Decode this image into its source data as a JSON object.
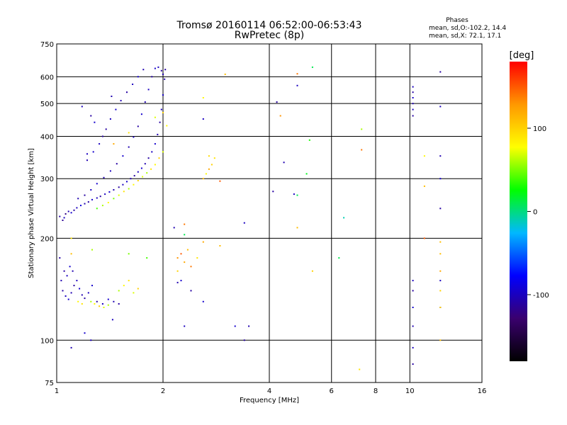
{
  "chart_data": {
    "type": "scatter",
    "title": "Tromsø 20160114 06:52:00-06:53:43",
    "subtitle": "RwPretec (8p)",
    "xlabel": "Frequency [MHz]",
    "ylabel": "Stationary phase Virtual Height [km]",
    "x_scale": "log",
    "y_scale": "log",
    "xlim": [
      1,
      16
    ],
    "ylim": [
      75,
      750
    ],
    "x_ticks": [
      1,
      2,
      4,
      6,
      8,
      10,
      16
    ],
    "y_ticks": [
      75,
      100,
      200,
      300,
      400,
      500,
      600,
      750
    ],
    "grid": true,
    "stats": {
      "heading": "Phases",
      "line_o": "mean, sd,O:-102.2, 14.4",
      "line_x": "mean, sd,X:  72.1, 17.1"
    },
    "colorbar": {
      "label": "[deg]",
      "range": [
        -180,
        180
      ],
      "ticks": [
        100,
        0,
        -100
      ],
      "colors": [
        "#000000",
        "#3a006e",
        "#0000ff",
        "#00b8ff",
        "#00ff00",
        "#ffff00",
        "#ff9800",
        "#ff0000"
      ]
    },
    "series": [
      {
        "name": "O",
        "points": [
          [
            1.02,
            232,
            -110
          ],
          [
            1.04,
            226,
            -115
          ],
          [
            1.05,
            230,
            -100
          ],
          [
            1.06,
            236,
            -120
          ],
          [
            1.08,
            240,
            -105
          ],
          [
            1.1,
            238,
            -95
          ],
          [
            1.12,
            242,
            -110
          ],
          [
            1.14,
            246,
            -100
          ],
          [
            1.17,
            250,
            -90
          ],
          [
            1.2,
            253,
            -105
          ],
          [
            1.23,
            256,
            -110
          ],
          [
            1.26,
            260,
            -95
          ],
          [
            1.3,
            263,
            -100
          ],
          [
            1.33,
            266,
            -110
          ],
          [
            1.37,
            270,
            -100
          ],
          [
            1.41,
            274,
            -95
          ],
          [
            1.45,
            278,
            -105
          ],
          [
            1.5,
            283,
            -110
          ],
          [
            1.54,
            288,
            -100
          ],
          [
            1.58,
            294,
            -95
          ],
          [
            1.62,
            300,
            -105
          ],
          [
            1.66,
            306,
            -110
          ],
          [
            1.7,
            314,
            -100
          ],
          [
            1.74,
            322,
            -95
          ],
          [
            1.78,
            332,
            -105
          ],
          [
            1.82,
            345,
            -110
          ],
          [
            1.86,
            360,
            -100
          ],
          [
            1.9,
            380,
            -95
          ],
          [
            1.93,
            405,
            -105
          ],
          [
            1.96,
            440,
            -110
          ],
          [
            1.98,
            480,
            -100
          ],
          [
            2.0,
            530,
            -95
          ],
          [
            2.02,
            590,
            -105
          ],
          [
            2.03,
            630,
            -110
          ],
          [
            1.15,
            262,
            -105
          ],
          [
            1.2,
            268,
            -110
          ],
          [
            1.25,
            278,
            -100
          ],
          [
            1.3,
            290,
            -95
          ],
          [
            1.36,
            302,
            -105
          ],
          [
            1.42,
            316,
            -100
          ],
          [
            1.48,
            332,
            -110
          ],
          [
            1.54,
            350,
            -95
          ],
          [
            1.6,
            372,
            -105
          ],
          [
            1.65,
            398,
            -100
          ],
          [
            1.7,
            428,
            -110
          ],
          [
            1.74,
            465,
            -95
          ],
          [
            1.78,
            505,
            -105
          ],
          [
            1.82,
            550,
            -100
          ],
          [
            1.86,
            600,
            -110
          ],
          [
            1.9,
            635,
            -95
          ],
          [
            1.94,
            640,
            -100
          ],
          [
            1.98,
            625,
            -110
          ],
          [
            2.0,
            610,
            -105
          ],
          [
            1.38,
            420,
            -110
          ],
          [
            1.42,
            450,
            -100
          ],
          [
            1.47,
            480,
            -95
          ],
          [
            1.52,
            510,
            -105
          ],
          [
            1.58,
            540,
            -110
          ],
          [
            1.64,
            570,
            -100
          ],
          [
            1.7,
            600,
            -95
          ],
          [
            1.76,
            630,
            -105
          ],
          [
            1.32,
            380,
            -100
          ],
          [
            1.35,
            400,
            -110
          ],
          [
            1.27,
            360,
            -95
          ],
          [
            1.22,
            340,
            -105
          ],
          [
            1.04,
            140,
            -110
          ],
          [
            1.06,
            135,
            -100
          ],
          [
            1.08,
            132,
            -95
          ],
          [
            1.1,
            138,
            -105
          ],
          [
            1.12,
            145,
            -110
          ],
          [
            1.14,
            150,
            -100
          ],
          [
            1.16,
            142,
            -95
          ],
          [
            1.18,
            136,
            -105
          ],
          [
            1.2,
            133,
            -110
          ],
          [
            1.23,
            138,
            -100
          ],
          [
            1.26,
            145,
            -95
          ],
          [
            1.03,
            150,
            -105
          ],
          [
            1.05,
            160,
            -110
          ],
          [
            1.07,
            155,
            -100
          ],
          [
            1.09,
            165,
            -95
          ],
          [
            1.11,
            160,
            -105
          ],
          [
            1.3,
            130,
            -110
          ],
          [
            1.35,
            128,
            -100
          ],
          [
            1.4,
            132,
            -95
          ],
          [
            1.45,
            130,
            -105
          ],
          [
            1.5,
            128,
            -110
          ],
          [
            1.44,
            115,
            -100
          ],
          [
            1.2,
            105,
            -95
          ],
          [
            1.1,
            95,
            -105
          ],
          [
            1.02,
            175,
            -110
          ],
          [
            1.18,
            490,
            -100
          ],
          [
            1.25,
            460,
            -110
          ],
          [
            1.28,
            440,
            -95
          ],
          [
            1.43,
            525,
            -105
          ],
          [
            1.22,
            355,
            -100
          ],
          [
            10.2,
            560,
            -100
          ],
          [
            10.2,
            540,
            -110
          ],
          [
            10.2,
            520,
            -95
          ],
          [
            10.2,
            500,
            -105
          ],
          [
            10.2,
            480,
            -100
          ],
          [
            10.2,
            460,
            -110
          ],
          [
            10.2,
            150,
            -100
          ],
          [
            10.2,
            140,
            -110
          ],
          [
            10.2,
            125,
            -95
          ],
          [
            10.2,
            110,
            -105
          ],
          [
            10.2,
            95,
            -100
          ],
          [
            10.2,
            85,
            -110
          ],
          [
            12.2,
            620,
            -110
          ],
          [
            12.2,
            490,
            -100
          ],
          [
            12.2,
            350,
            -105
          ],
          [
            12.2,
            300,
            -95
          ],
          [
            12.2,
            245,
            -110
          ],
          [
            12.2,
            150,
            -100
          ],
          [
            12.2,
            125,
            -105
          ],
          [
            4.8,
            565,
            -100
          ],
          [
            4.2,
            505,
            -110
          ],
          [
            4.4,
            335,
            -105
          ],
          [
            3.4,
            222,
            -100
          ],
          [
            3.4,
            100,
            -110
          ],
          [
            3.2,
            110,
            -95
          ],
          [
            3.5,
            110,
            -105
          ],
          [
            2.3,
            110,
            -100
          ],
          [
            2.25,
            150,
            -95
          ],
          [
            2.2,
            148,
            -105
          ],
          [
            2.4,
            140,
            -110
          ],
          [
            2.6,
            450,
            -100
          ],
          [
            2.6,
            130,
            -95
          ],
          [
            2.15,
            215,
            -105
          ],
          [
            4.7,
            270,
            -100
          ],
          [
            4.1,
            275,
            -110
          ],
          [
            1.25,
            100,
            -100
          ]
        ]
      },
      {
        "name": "X",
        "points": [
          [
            1.3,
            245,
            40
          ],
          [
            1.35,
            250,
            60
          ],
          [
            1.4,
            255,
            80
          ],
          [
            1.45,
            262,
            50
          ],
          [
            1.5,
            268,
            70
          ],
          [
            1.55,
            275,
            90
          ],
          [
            1.6,
            280,
            60
          ],
          [
            1.65,
            288,
            80
          ],
          [
            1.7,
            296,
            100
          ],
          [
            1.75,
            304,
            70
          ],
          [
            1.8,
            312,
            60
          ],
          [
            1.85,
            320,
            90
          ],
          [
            1.9,
            330,
            80
          ],
          [
            1.95,
            345,
            100
          ],
          [
            2.0,
            360,
            70
          ],
          [
            1.25,
            130,
            60
          ],
          [
            1.28,
            128,
            80
          ],
          [
            1.32,
            126,
            100
          ],
          [
            1.36,
            125,
            70
          ],
          [
            1.4,
            127,
            60
          ],
          [
            1.15,
            130,
            80
          ],
          [
            1.18,
            128,
            90
          ],
          [
            1.5,
            140,
            60
          ],
          [
            1.55,
            145,
            80
          ],
          [
            1.6,
            150,
            90
          ],
          [
            1.65,
            138,
            70
          ],
          [
            1.7,
            142,
            100
          ],
          [
            2.2,
            175,
            130
          ],
          [
            2.25,
            180,
            150
          ],
          [
            2.3,
            170,
            120
          ],
          [
            2.35,
            185,
            110
          ],
          [
            2.4,
            165,
            140
          ],
          [
            2.2,
            160,
            100
          ],
          [
            2.8,
            345,
            90
          ],
          [
            2.75,
            330,
            100
          ],
          [
            2.7,
            320,
            120
          ],
          [
            2.65,
            310,
            80
          ],
          [
            2.6,
            300,
            110
          ],
          [
            3.0,
            610,
            110
          ],
          [
            2.9,
            295,
            150
          ],
          [
            2.7,
            350,
            95
          ],
          [
            2.3,
            220,
            140
          ],
          [
            2.6,
            195,
            120
          ],
          [
            2.9,
            190,
            110
          ],
          [
            2.5,
            175,
            90
          ],
          [
            4.8,
            612,
            140
          ],
          [
            4.3,
            460,
            130
          ],
          [
            5.2,
            390,
            30
          ],
          [
            5.1,
            310,
            20
          ],
          [
            4.8,
            268,
            10
          ],
          [
            4.8,
            215,
            110
          ],
          [
            5.3,
            640,
            10
          ],
          [
            5.3,
            160,
            100
          ],
          [
            6.5,
            230,
            -10
          ],
          [
            6.3,
            175,
            10
          ],
          [
            7.3,
            420,
            60
          ],
          [
            7.3,
            365,
            140
          ],
          [
            7.2,
            82,
            90
          ],
          [
            11.0,
            350,
            80
          ],
          [
            11.0,
            285,
            110
          ],
          [
            11.0,
            200,
            150
          ],
          [
            12.2,
            195,
            110
          ],
          [
            12.2,
            180,
            110
          ],
          [
            12.2,
            160,
            120
          ],
          [
            12.2,
            140,
            100
          ],
          [
            12.2,
            125,
            100
          ],
          [
            12.2,
            100,
            110
          ],
          [
            2.3,
            205,
            10
          ],
          [
            1.1,
            180,
            110
          ],
          [
            1.1,
            200,
            90
          ],
          [
            1.6,
            180,
            50
          ],
          [
            1.8,
            175,
            40
          ],
          [
            1.45,
            380,
            120
          ],
          [
            1.6,
            410,
            90
          ],
          [
            1.9,
            455,
            70
          ],
          [
            2.0,
            470,
            100
          ],
          [
            2.05,
            430,
            80
          ],
          [
            2.6,
            520,
            80
          ],
          [
            1.26,
            185,
            60
          ]
        ]
      }
    ]
  }
}
